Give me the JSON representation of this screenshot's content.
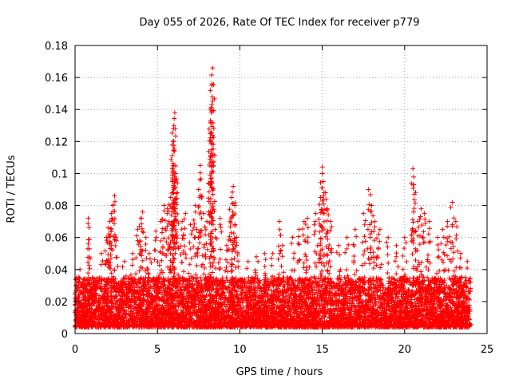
{
  "chart_data": {
    "type": "scatter",
    "title": "Day 055 of 2026, Rate Of TEC Index for receiver p779",
    "xlabel": "GPS time / hours",
    "ylabel": "ROTI / TECUs",
    "xlim": [
      0,
      25
    ],
    "ylim": [
      0,
      0.18
    ],
    "x_ticks": [
      0,
      5,
      10,
      15,
      20,
      25
    ],
    "x_tick_labels": [
      "0",
      "5",
      "10",
      "15",
      "20",
      "25"
    ],
    "y_ticks": [
      0,
      0.02,
      0.04,
      0.06,
      0.08,
      0.1,
      0.12,
      0.14,
      0.16,
      0.18
    ],
    "y_tick_labels": [
      "0",
      "0.02",
      "0.04",
      "0.06",
      "0.08",
      "0.1",
      "0.12",
      "0.14",
      "0.16",
      "0.18"
    ],
    "grid": true,
    "marker": "+",
    "marker_color": "#ff0000",
    "dense_band": {
      "x_range": [
        0,
        24
      ],
      "y_range": [
        0.004,
        0.035
      ]
    },
    "series": [
      {
        "name": "ROTI",
        "points": [
          [
            0.1,
            0.035
          ],
          [
            0.3,
            0.04
          ],
          [
            0.4,
            0.03
          ],
          [
            0.8,
            0.072
          ],
          [
            0.8,
            0.056
          ],
          [
            1.1,
            0.032
          ],
          [
            1.6,
            0.05
          ],
          [
            1.9,
            0.06
          ],
          [
            2.0,
            0.066
          ],
          [
            2.1,
            0.07
          ],
          [
            2.2,
            0.075
          ],
          [
            2.3,
            0.08
          ],
          [
            2.4,
            0.086
          ],
          [
            2.5,
            0.058
          ],
          [
            3.0,
            0.045
          ],
          [
            3.5,
            0.05
          ],
          [
            3.8,
            0.065
          ],
          [
            4.0,
            0.072
          ],
          [
            4.1,
            0.076
          ],
          [
            4.3,
            0.06
          ],
          [
            4.5,
            0.05
          ],
          [
            4.9,
            0.064
          ],
          [
            5.2,
            0.07
          ],
          [
            5.4,
            0.08
          ],
          [
            5.6,
            0.078
          ],
          [
            5.7,
            0.07
          ],
          [
            5.8,
            0.085
          ],
          [
            5.9,
            0.095
          ],
          [
            6.0,
            0.105
          ],
          [
            5.95,
            0.12
          ],
          [
            6.0,
            0.13
          ],
          [
            6.05,
            0.138
          ],
          [
            6.1,
            0.1
          ],
          [
            6.2,
            0.088
          ],
          [
            6.5,
            0.07
          ],
          [
            6.7,
            0.075
          ],
          [
            7.0,
            0.068
          ],
          [
            7.3,
            0.08
          ],
          [
            7.5,
            0.09
          ],
          [
            7.6,
            0.105
          ],
          [
            7.8,
            0.075
          ],
          [
            8.0,
            0.07
          ],
          [
            8.2,
            0.125
          ],
          [
            8.25,
            0.132
          ],
          [
            8.3,
            0.143
          ],
          [
            8.3,
            0.155
          ],
          [
            8.35,
            0.166
          ],
          [
            8.5,
            0.065
          ],
          [
            8.8,
            0.072
          ],
          [
            9.2,
            0.055
          ],
          [
            9.4,
            0.07
          ],
          [
            9.5,
            0.085
          ],
          [
            9.6,
            0.092
          ],
          [
            9.7,
            0.08
          ],
          [
            9.8,
            0.06
          ],
          [
            10.5,
            0.045
          ],
          [
            11.0,
            0.048
          ],
          [
            11.5,
            0.05
          ],
          [
            12.0,
            0.05
          ],
          [
            12.4,
            0.07
          ],
          [
            12.6,
            0.055
          ],
          [
            13.2,
            0.06
          ],
          [
            13.6,
            0.065
          ],
          [
            13.9,
            0.07
          ],
          [
            14.1,
            0.072
          ],
          [
            14.6,
            0.075
          ],
          [
            14.9,
            0.085
          ],
          [
            15.0,
            0.104
          ],
          [
            15.0,
            0.1
          ],
          [
            15.2,
            0.088
          ],
          [
            15.3,
            0.078
          ],
          [
            15.5,
            0.07
          ],
          [
            16.0,
            0.055
          ],
          [
            16.5,
            0.06
          ],
          [
            17.0,
            0.065
          ],
          [
            17.5,
            0.075
          ],
          [
            17.8,
            0.09
          ],
          [
            18.0,
            0.08
          ],
          [
            18.2,
            0.07
          ],
          [
            18.5,
            0.065
          ],
          [
            19.0,
            0.06
          ],
          [
            19.5,
            0.055
          ],
          [
            20.0,
            0.06
          ],
          [
            20.5,
            0.103
          ],
          [
            20.55,
            0.093
          ],
          [
            20.8,
            0.07
          ],
          [
            21.0,
            0.078
          ],
          [
            21.2,
            0.075
          ],
          [
            21.5,
            0.07
          ],
          [
            22.0,
            0.06
          ],
          [
            22.3,
            0.065
          ],
          [
            22.6,
            0.07
          ],
          [
            22.9,
            0.082
          ],
          [
            23.1,
            0.07
          ],
          [
            23.4,
            0.05
          ],
          [
            23.8,
            0.045
          ]
        ]
      }
    ]
  }
}
